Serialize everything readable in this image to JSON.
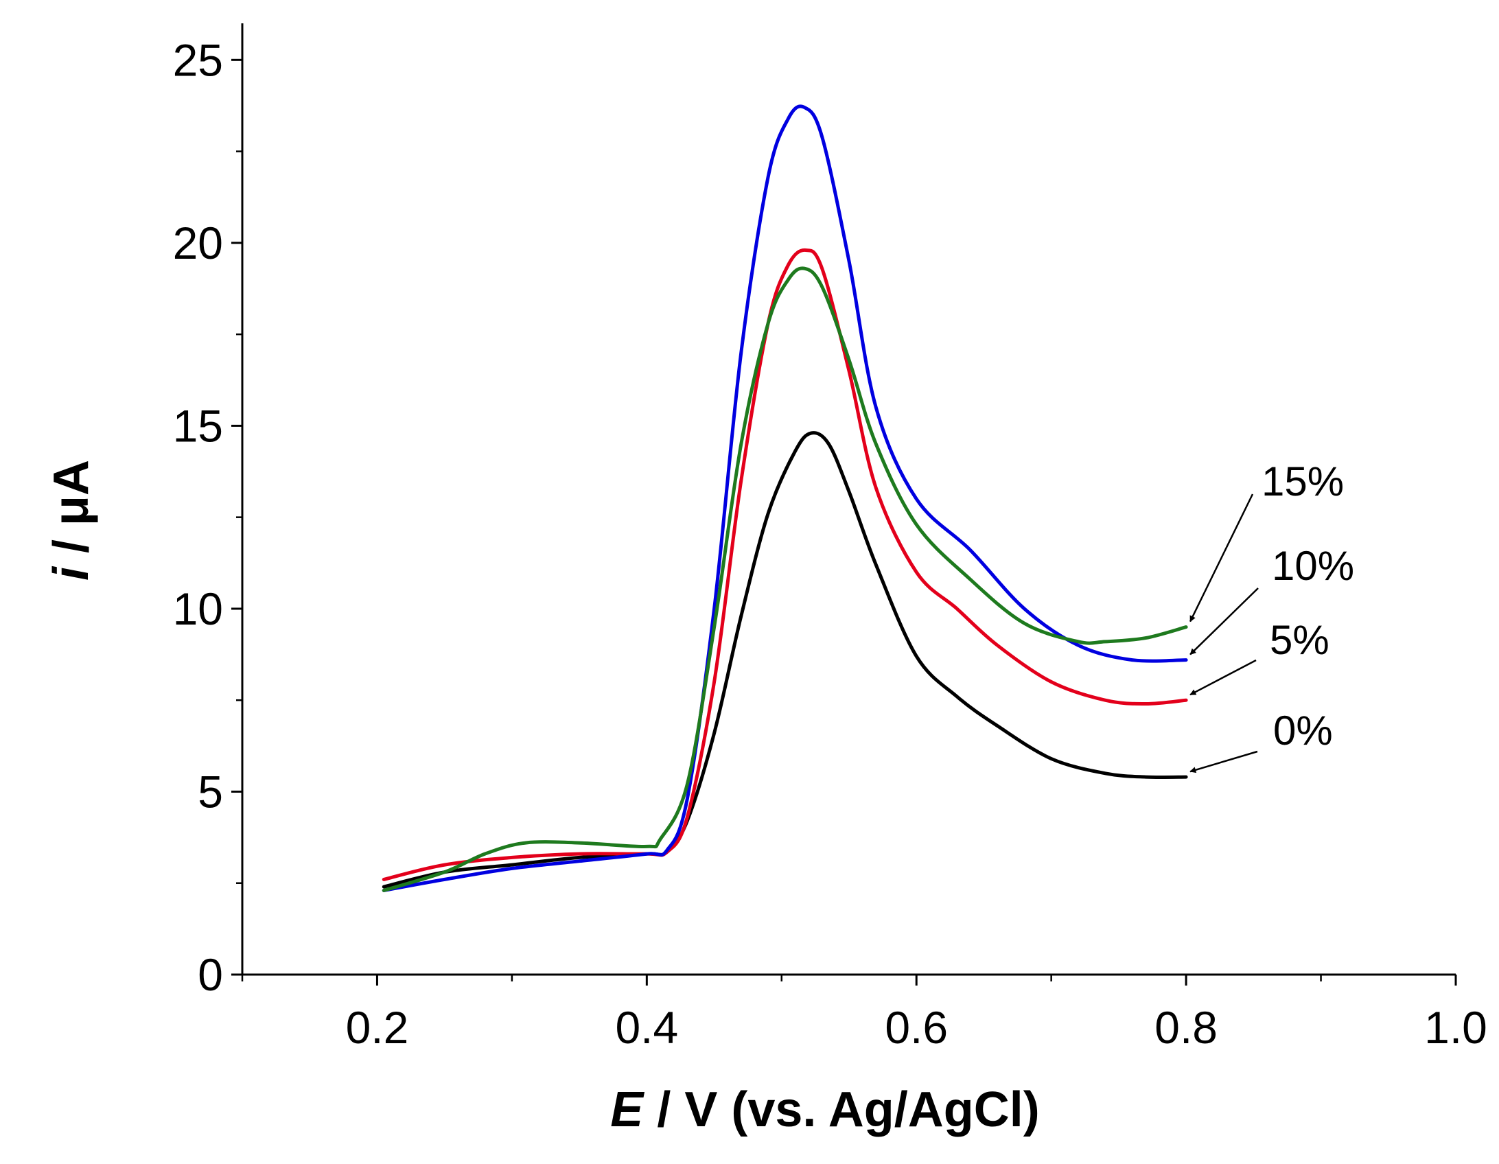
{
  "chart_data": {
    "type": "line",
    "title": "",
    "xlabel_parts": [
      "E",
      " / V (vs. Ag/AgCl)"
    ],
    "ylabel_parts": [
      "i",
      " / μA"
    ],
    "xlim": [
      0.1,
      1.0
    ],
    "ylim": [
      0,
      26
    ],
    "x_ticks": [
      0.2,
      0.4,
      0.6,
      0.8,
      1.0
    ],
    "x_tick_labels": [
      "0.2",
      "0.4",
      "0.6",
      "0.8",
      "1.0"
    ],
    "y_ticks": [
      0,
      5,
      10,
      15,
      20,
      25
    ],
    "y_tick_labels": [
      "0",
      "5",
      "10",
      "15",
      "20",
      "25"
    ],
    "x_minor_ticks": [
      0.1,
      0.3,
      0.5,
      0.7,
      0.9
    ],
    "y_minor_ticks": [
      2.5,
      7.5,
      12.5,
      17.5,
      22.5
    ],
    "grid": false,
    "legend": "annotations with arrows, right side",
    "series": [
      {
        "name": "0%",
        "color": "#000000",
        "x": [
          0.205,
          0.25,
          0.3,
          0.35,
          0.4,
          0.415,
          0.43,
          0.45,
          0.47,
          0.49,
          0.51,
          0.522,
          0.535,
          0.55,
          0.57,
          0.6,
          0.63,
          0.66,
          0.7,
          0.74,
          0.77,
          0.8
        ],
        "y": [
          2.4,
          2.8,
          3.0,
          3.2,
          3.3,
          3.35,
          4.2,
          6.6,
          9.8,
          12.6,
          14.3,
          14.8,
          14.5,
          13.2,
          11.2,
          8.7,
          7.6,
          6.8,
          5.9,
          5.5,
          5.4,
          5.4
        ]
      },
      {
        "name": "5%",
        "color": "#e3001b",
        "x": [
          0.205,
          0.25,
          0.3,
          0.35,
          0.4,
          0.415,
          0.43,
          0.45,
          0.47,
          0.49,
          0.505,
          0.518,
          0.53,
          0.55,
          0.57,
          0.6,
          0.63,
          0.66,
          0.7,
          0.74,
          0.77,
          0.8
        ],
        "y": [
          2.6,
          3.0,
          3.2,
          3.3,
          3.3,
          3.35,
          4.3,
          8.0,
          13.5,
          17.8,
          19.4,
          19.8,
          19.3,
          16.5,
          13.3,
          11.0,
          10.0,
          9.0,
          8.0,
          7.5,
          7.4,
          7.5
        ]
      },
      {
        "name": "10%",
        "color": "#0000e0",
        "x": [
          0.205,
          0.25,
          0.3,
          0.35,
          0.4,
          0.415,
          0.43,
          0.45,
          0.47,
          0.49,
          0.505,
          0.517,
          0.53,
          0.55,
          0.57,
          0.6,
          0.64,
          0.68,
          0.72,
          0.76,
          0.8
        ],
        "y": [
          2.3,
          2.6,
          2.9,
          3.1,
          3.3,
          3.4,
          4.8,
          10.0,
          17.0,
          21.8,
          23.4,
          23.7,
          22.9,
          19.5,
          15.5,
          13.0,
          11.6,
          10.0,
          9.0,
          8.6,
          8.6
        ]
      },
      {
        "name": "15%",
        "color": "#1e7a1e",
        "x": [
          0.205,
          0.25,
          0.28,
          0.31,
          0.35,
          0.4,
          0.41,
          0.43,
          0.45,
          0.47,
          0.49,
          0.505,
          0.517,
          0.53,
          0.55,
          0.57,
          0.6,
          0.64,
          0.68,
          0.72,
          0.74,
          0.77,
          0.8
        ],
        "y": [
          2.3,
          2.8,
          3.3,
          3.6,
          3.6,
          3.5,
          3.7,
          5.2,
          9.5,
          14.5,
          17.8,
          19.0,
          19.3,
          18.8,
          16.8,
          14.5,
          12.3,
          10.8,
          9.6,
          9.1,
          9.1,
          9.2,
          9.5
        ]
      }
    ],
    "annotations": [
      {
        "label": "15%",
        "series": "15%",
        "x": 0.8,
        "y": 9.5
      },
      {
        "label": "10%",
        "series": "10%",
        "x": 0.8,
        "y": 8.6
      },
      {
        "label": "5%",
        "series": "5%",
        "x": 0.8,
        "y": 7.5
      },
      {
        "label": "0%",
        "series": "0%",
        "x": 0.8,
        "y": 5.4
      }
    ]
  }
}
